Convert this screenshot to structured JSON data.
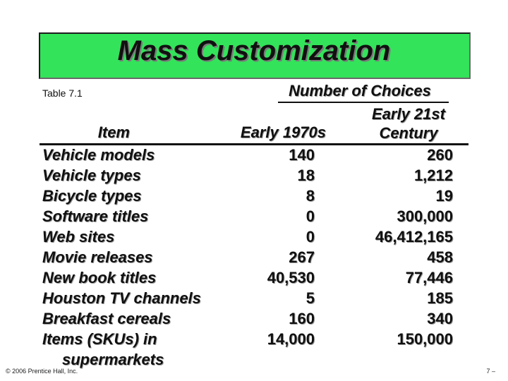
{
  "slide": {
    "title": "Mass Customization",
    "table_label": "Table 7.1",
    "group_header": "Number of Choices",
    "columns": {
      "item": "Item",
      "early_1970s": "Early 1970s",
      "early_21st": [
        "Early 21st",
        "Century"
      ]
    },
    "rows": [
      {
        "item": [
          "Vehicle models"
        ],
        "early_1970s": "140",
        "early_21st": "260"
      },
      {
        "item": [
          "Vehicle types"
        ],
        "early_1970s": "18",
        "early_21st": "1,212"
      },
      {
        "item": [
          "Bicycle types"
        ],
        "early_1970s": "8",
        "early_21st": "19"
      },
      {
        "item": [
          "Software titles"
        ],
        "early_1970s": "0",
        "early_21st": "300,000"
      },
      {
        "item": [
          "Web sites"
        ],
        "early_1970s": "0",
        "early_21st": "46,412,165"
      },
      {
        "item": [
          "Movie releases"
        ],
        "early_1970s": "267",
        "early_21st": "458"
      },
      {
        "item": [
          "New book titles"
        ],
        "early_1970s": "40,530",
        "early_21st": "77,446"
      },
      {
        "item": [
          "Houston TV channels"
        ],
        "early_1970s": "5",
        "early_21st": "185"
      },
      {
        "item": [
          "Breakfast cereals"
        ],
        "early_1970s": "160",
        "early_21st": "340"
      },
      {
        "item": [
          "Items (SKUs) in",
          "supermarkets"
        ],
        "early_1970s": "14,000",
        "early_21st": "150,000"
      }
    ],
    "footer": {
      "copyright": "© 2006 Prentice Hall, Inc.",
      "page": "7 –"
    },
    "colors": {
      "title_banner": "#33e35a",
      "text": "#101010"
    }
  }
}
